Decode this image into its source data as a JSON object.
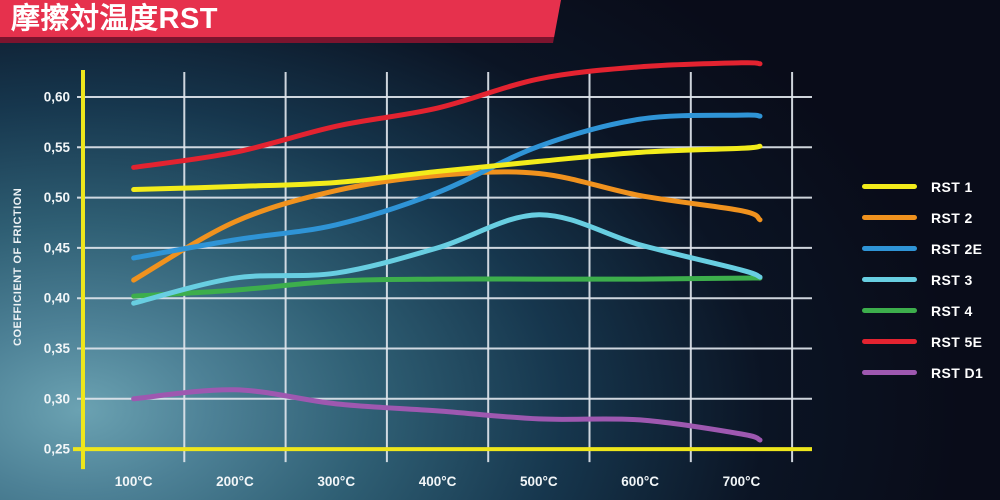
{
  "banner": {
    "title": "摩擦対温度RST"
  },
  "colors": {
    "banner_red": "#e6314d",
    "banner_stripe": "#7c142e",
    "axis_yellow": "#eee61c",
    "grid_white": "#dfe5ec",
    "tick_text": "#f2f6f8",
    "background_dark": "#090c18",
    "background_glow": "#6ba2b2"
  },
  "chart_data": {
    "type": "line",
    "title": "摩擦対温度RST",
    "xlabel": "",
    "ylabel": "COEFFICIENT OF FRICTION",
    "x": [
      100,
      200,
      300,
      400,
      500,
      600,
      700
    ],
    "x_tick_labels": [
      "100°C",
      "200°C",
      "300°C",
      "400°C",
      "500°C",
      "600°C",
      "700°C"
    ],
    "y_tick_labels": [
      "0,60",
      "0,55",
      "0,50",
      "0,45",
      "0,40",
      "0,35",
      "0,30",
      "0,25"
    ],
    "y_tick_values": [
      0.6,
      0.55,
      0.5,
      0.45,
      0.4,
      0.35,
      0.3,
      0.25
    ],
    "ylim": [
      0.25,
      0.63
    ],
    "grid": true,
    "legend_position": "right",
    "series": [
      {
        "name": "RST 1",
        "color": "#f3ec1b",
        "values": [
          0.508,
          0.511,
          0.515,
          0.526,
          0.536,
          0.545,
          0.549
        ],
        "tail_value": 0.551
      },
      {
        "name": "RST 2",
        "color": "#f0921e",
        "values": [
          0.418,
          0.476,
          0.507,
          0.522,
          0.524,
          0.502,
          0.487
        ],
        "tail_value": 0.478
      },
      {
        "name": "RST 2E",
        "color": "#2f94d6",
        "values": [
          0.44,
          0.458,
          0.473,
          0.505,
          0.551,
          0.578,
          0.582
        ],
        "tail_value": 0.581
      },
      {
        "name": "RST 3",
        "color": "#68cee1",
        "values": [
          0.395,
          0.42,
          0.425,
          0.45,
          0.483,
          0.453,
          0.428
        ],
        "tail_value": 0.421
      },
      {
        "name": "RST 4",
        "color": "#3dae4c",
        "values": [
          0.402,
          0.408,
          0.417,
          0.419,
          0.419,
          0.419,
          0.42
        ],
        "tail_value": 0.42
      },
      {
        "name": "RST 5E",
        "color": "#e32330",
        "values": [
          0.53,
          0.545,
          0.571,
          0.589,
          0.618,
          0.63,
          0.634
        ],
        "tail_value": 0.633
      },
      {
        "name": "RST D1",
        "color": "#9e58b0",
        "values": [
          0.3,
          0.309,
          0.295,
          0.288,
          0.28,
          0.279,
          0.265
        ],
        "tail_value": 0.259
      }
    ],
    "z_order": [
      "RST D1",
      "RST 4",
      "RST 3",
      "RST 2",
      "RST 2E",
      "RST 1",
      "RST 5E"
    ]
  }
}
